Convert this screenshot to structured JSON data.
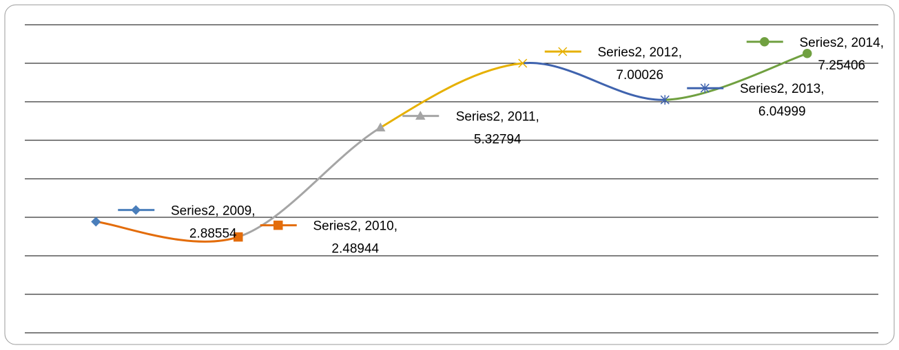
{
  "chart_data": {
    "type": "line",
    "smooth": true,
    "categories": [
      "2009",
      "2010",
      "2011",
      "2012",
      "2013",
      "2014"
    ],
    "values": [
      2.88554,
      2.48944,
      5.32794,
      7.00026,
      6.04999,
      7.25406
    ],
    "value_labels": [
      "Series2, 2009, 2.88554",
      "Series2, 2010, 2.48944",
      "Series2, 2011, 5.32794",
      "Series2, 2012, 7.00026",
      "Series2, 2013, 6.04999",
      "Series2, 2014, 7.25406"
    ],
    "colors": [
      "#4a7ebb",
      "#e36c0a",
      "#a5a5a5",
      "#e6b000",
      "#3f63ae",
      "#70a040"
    ],
    "markers": [
      "diamond",
      "square",
      "triangle",
      "x",
      "star",
      "circle"
    ],
    "ylim": [
      0,
      8
    ],
    "yticks": [
      0,
      1,
      2,
      3,
      4,
      5,
      6,
      7,
      8
    ],
    "grid": true
  }
}
